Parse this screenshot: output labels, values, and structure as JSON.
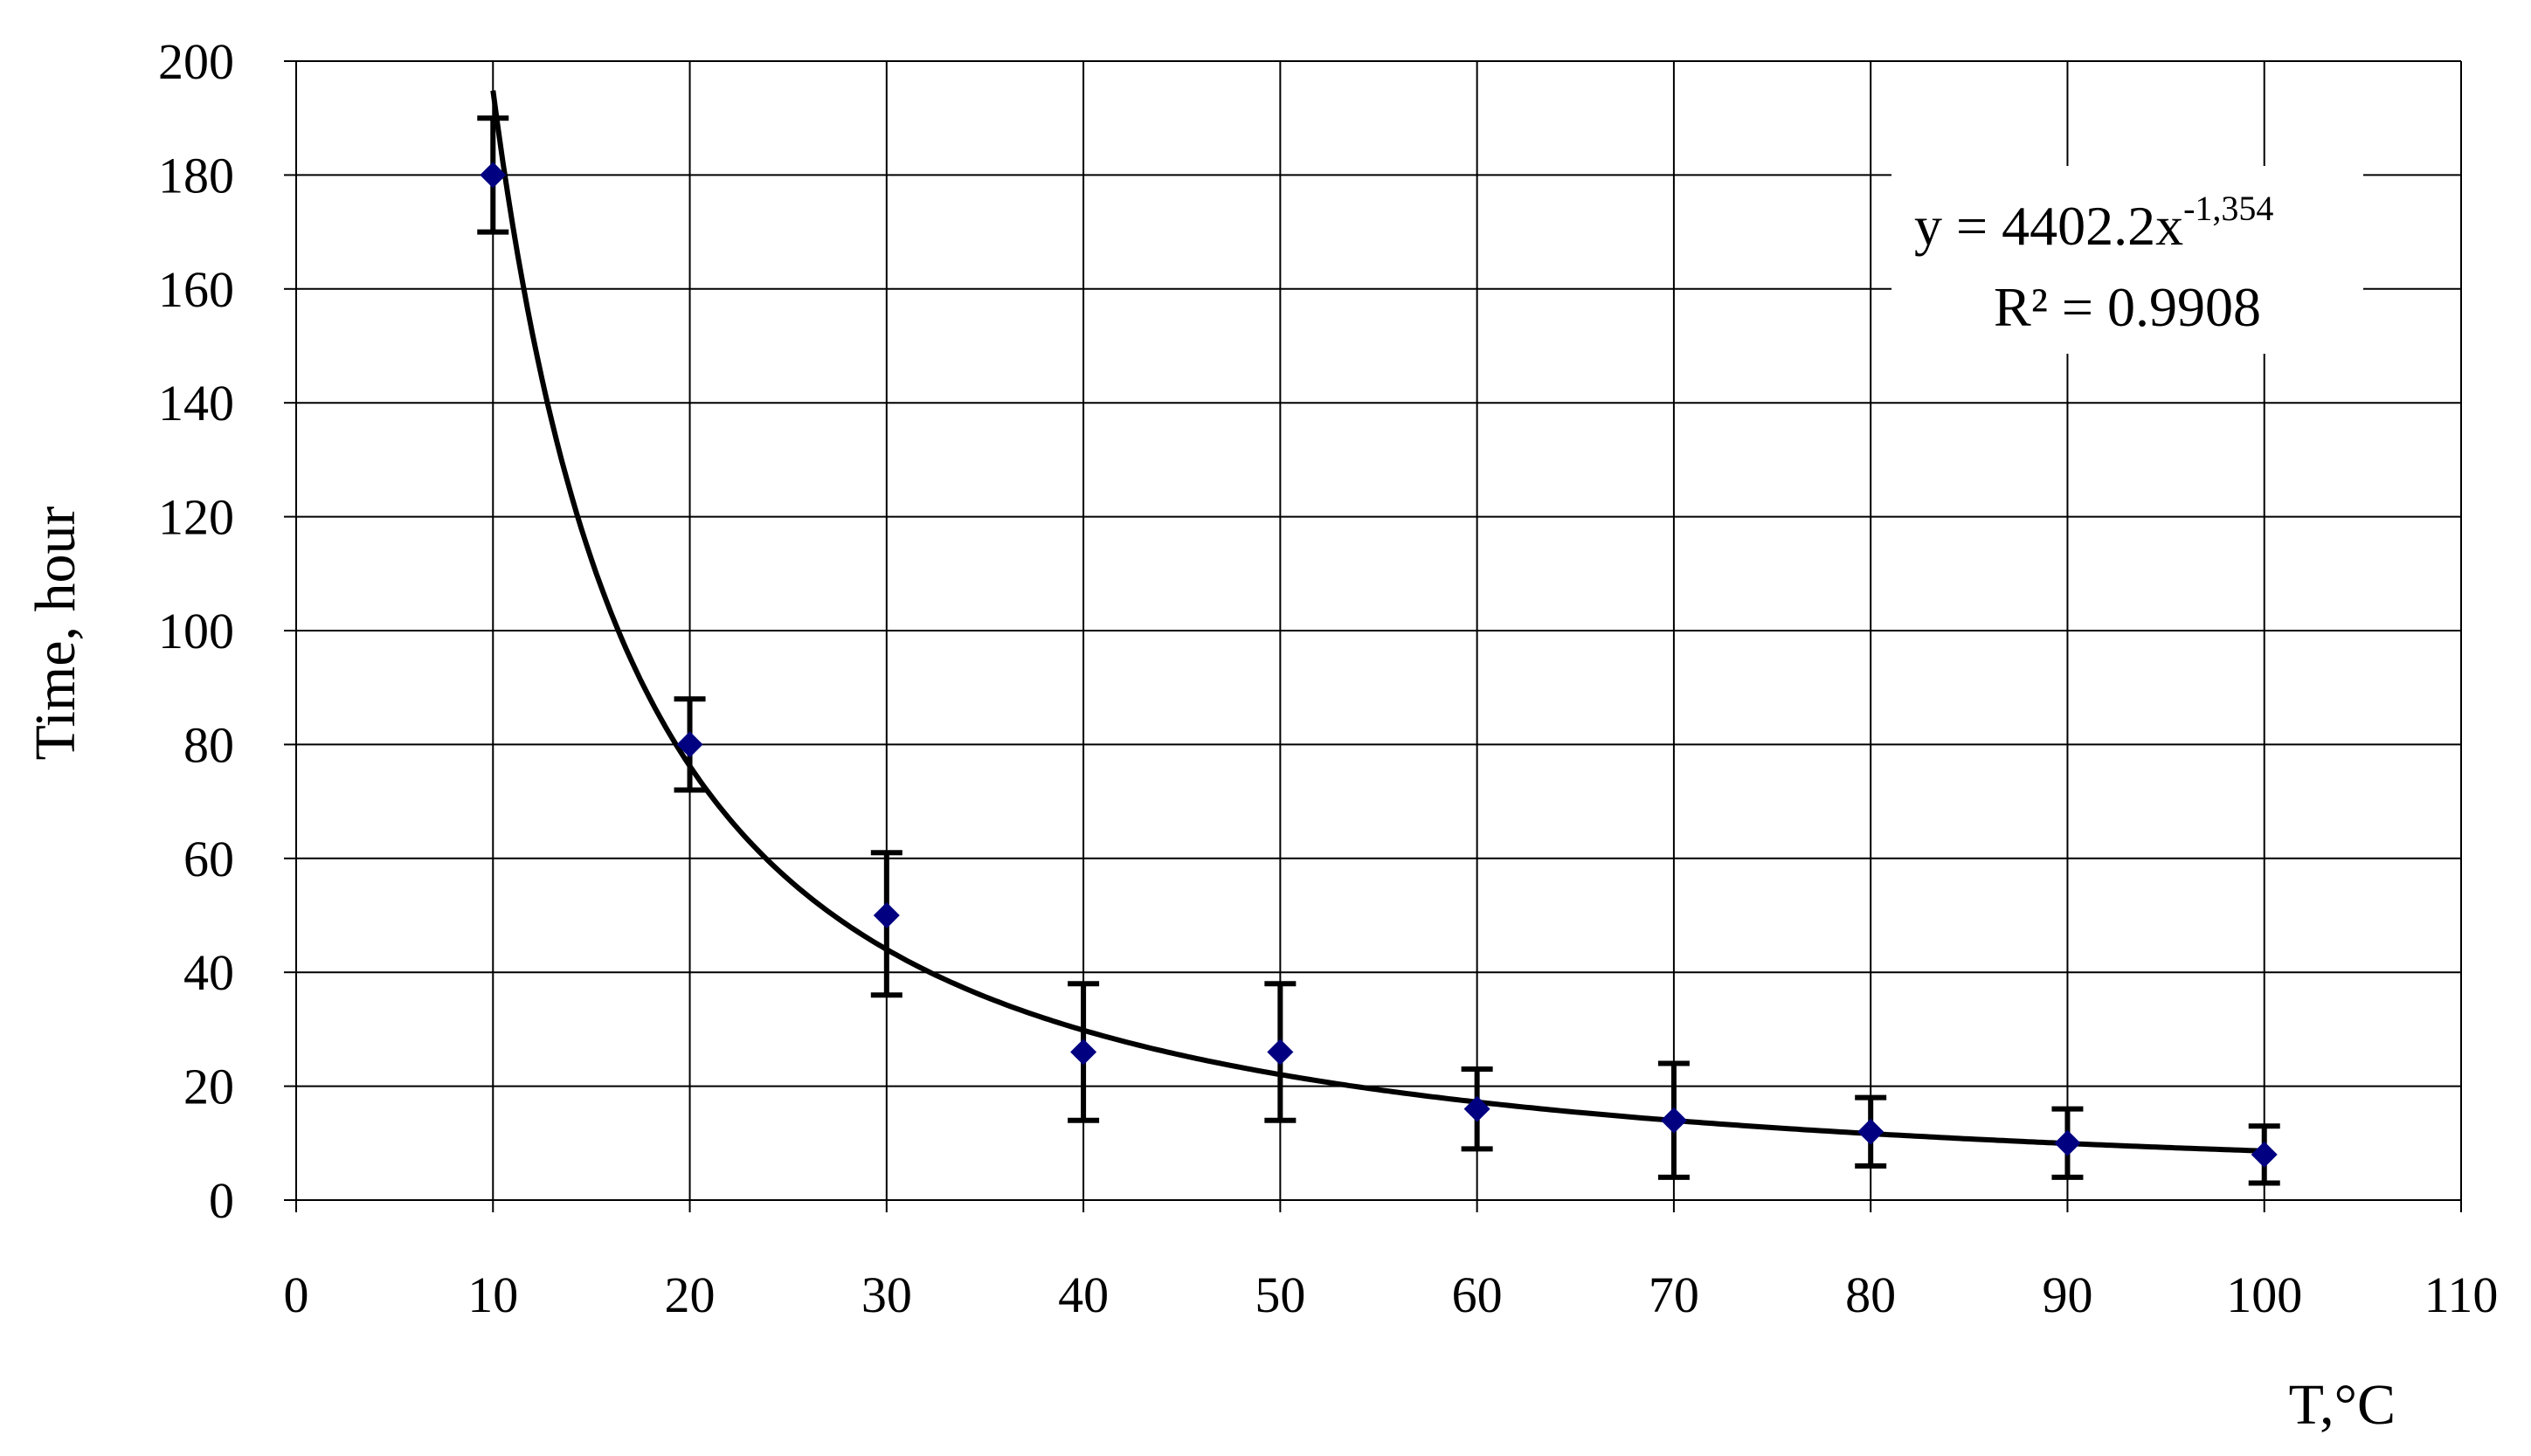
{
  "chart_data": {
    "type": "scatter",
    "xlabel": "T,°C",
    "ylabel": "Time, hour",
    "xlim": [
      0,
      110
    ],
    "ylim": [
      0,
      200
    ],
    "x_ticks": [
      "0",
      "10",
      "20",
      "30",
      "40",
      "50",
      "60",
      "70",
      "80",
      "90",
      "100",
      "110"
    ],
    "y_ticks": [
      "0",
      "20",
      "40",
      "60",
      "80",
      "100",
      "120",
      "140",
      "160",
      "180",
      "200"
    ],
    "grid": true,
    "marker_color": "#000080",
    "series": [
      {
        "x": [
          10,
          20,
          30,
          40,
          50,
          60,
          70,
          80,
          90,
          100
        ],
        "y": [
          180,
          80,
          50,
          26,
          26,
          16,
          14,
          12,
          10,
          8
        ],
        "y_error_low": [
          170,
          72,
          36,
          14,
          14,
          9,
          4,
          6,
          4,
          3
        ],
        "y_error_high": [
          190,
          88,
          61,
          38,
          38,
          23,
          24,
          18,
          16,
          13
        ]
      }
    ],
    "trendline": {
      "type": "power",
      "coefficient": 4402.2,
      "exponent": -1.354,
      "equation_base": "y = 4402.2x",
      "equation_exponent": "-1,354",
      "r_squared_label": "R² = 0.9908"
    }
  }
}
